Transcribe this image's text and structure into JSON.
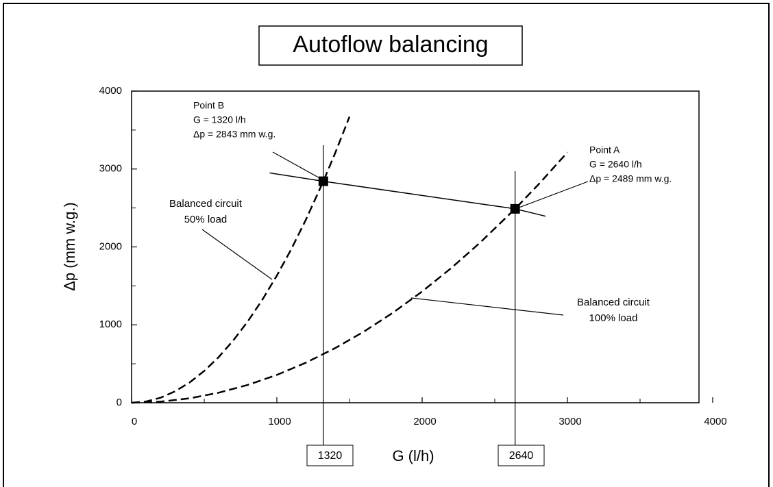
{
  "chart_data": {
    "type": "line",
    "title": "Autoflow balancing",
    "xlabel": "G (l/h)",
    "ylabel": "Δp (mm w.g.)",
    "xlim": [
      0,
      4000
    ],
    "ylim": [
      0,
      4000
    ],
    "xticks": [
      0,
      1000,
      2000,
      3000,
      4000
    ],
    "yticks": [
      0,
      1000,
      2000,
      3000,
      4000
    ],
    "minor_ticks": [
      500,
      1500,
      2500,
      3500
    ],
    "series": [
      {
        "color": "#000000",
        "dashed": true,
        "x": [
          0,
          100,
          200,
          300,
          400,
          500,
          600,
          700,
          800,
          900,
          1000,
          1100,
          1200,
          1320,
          1400,
          1500
        ],
        "values": [
          0,
          16,
          65,
          147,
          261,
          408,
          587,
          800,
          1044,
          1322,
          1632,
          1974,
          2350,
          2843,
          3198,
          3671
        ]
      },
      {
        "color": "#000000",
        "dashed": true,
        "x": [
          0,
          200,
          400,
          600,
          800,
          1000,
          1200,
          1400,
          1600,
          1800,
          2000,
          2200,
          2400,
          2640,
          2800,
          3000
        ],
        "values": [
          0,
          14,
          57,
          129,
          229,
          357,
          514,
          700,
          914,
          1157,
          1428,
          1728,
          2057,
          2489,
          2800,
          3214
        ]
      },
      {
        "color": "#000000",
        "dashed": false,
        "x": [
          950,
          1320,
          2640,
          2850
        ],
        "values": [
          2950,
          2843,
          2489,
          2394
        ]
      }
    ],
    "vlines": [
      1320,
      2640
    ],
    "points": [
      {
        "label": "Point B",
        "text": [
          "G = 1320 l/h",
          "Δp = 2843 mm w.g."
        ],
        "x": 1320,
        "y": 2843
      },
      {
        "label": "Point A",
        "text": [
          "G = 2640 l/h",
          "Δp = 2489 mm w.g."
        ],
        "x": 2640,
        "y": 2489
      }
    ],
    "annotations": [
      [
        "Balanced circuit",
        "50% load"
      ],
      [
        "Balanced circuit",
        "100% load"
      ]
    ]
  }
}
